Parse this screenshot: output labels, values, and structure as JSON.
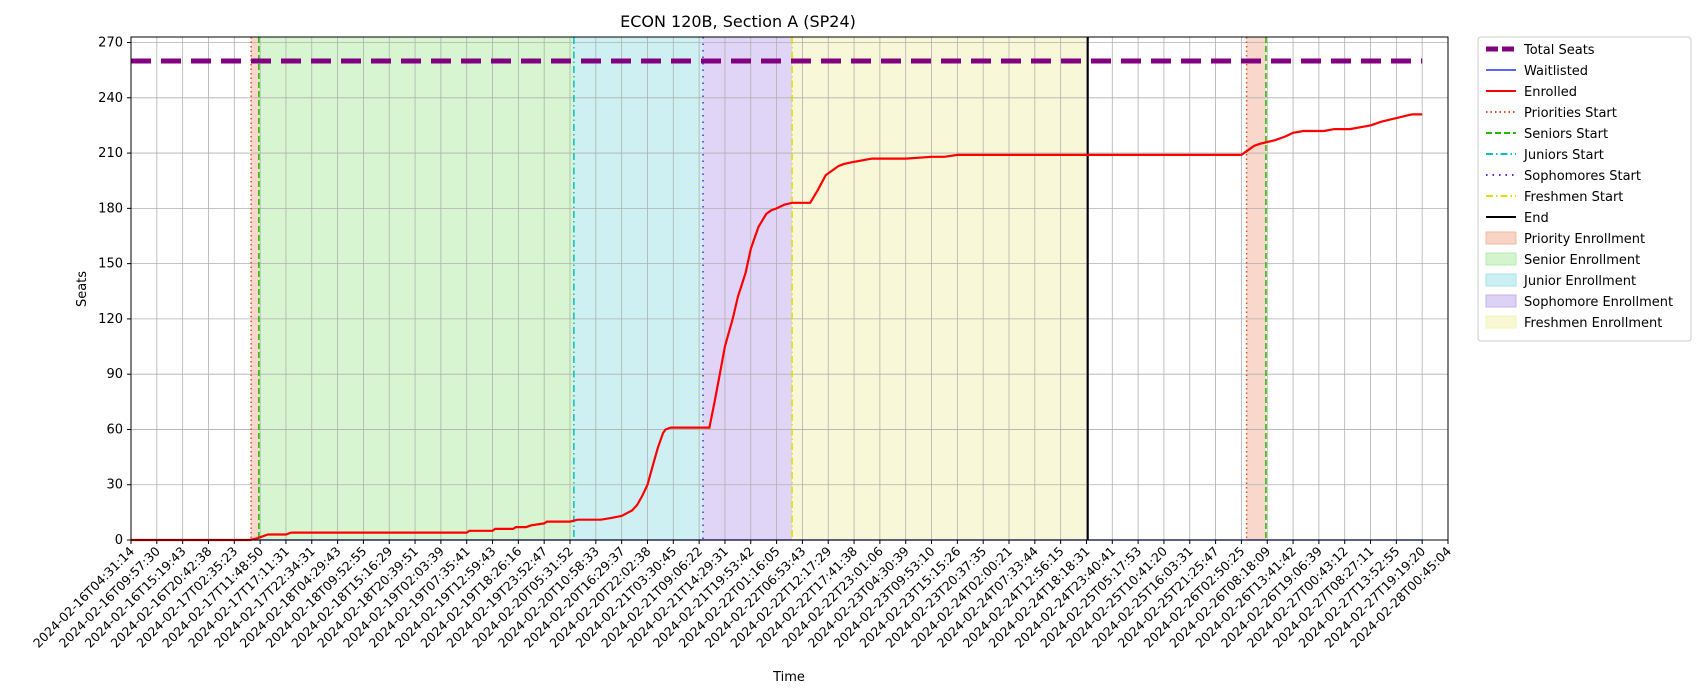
{
  "chart_data": {
    "type": "line",
    "title": "ECON 120B, Section A (SP24)",
    "xlabel": "Time",
    "ylabel": "Seats",
    "ylim": [
      0,
      273
    ],
    "yticks": [
      0,
      30,
      60,
      90,
      120,
      150,
      180,
      210,
      240,
      270
    ],
    "grid": true,
    "legend_position": "outside-right",
    "x_tick_labels": [
      "2024-02-16T04:31:14",
      "2024-02-16T09:57:30",
      "2024-02-16T15:19:43",
      "2024-02-16T20:42:38",
      "2024-02-17T02:35:23",
      "2024-02-17T11:48:50",
      "2024-02-17T17:11:31",
      "2024-02-17T22:34:31",
      "2024-02-18T04:29:43",
      "2024-02-18T09:52:55",
      "2024-02-18T15:16:29",
      "2024-02-18T20:39:51",
      "2024-02-19T02:03:39",
      "2024-02-19T07:35:41",
      "2024-02-19T12:59:43",
      "2024-02-19T18:26:16",
      "2024-02-19T23:52:47",
      "2024-02-20T05:31:52",
      "2024-02-20T10:58:33",
      "2024-02-20T16:29:37",
      "2024-02-20T22:02:38",
      "2024-02-21T03:30:45",
      "2024-02-21T09:06:22",
      "2024-02-21T14:29:31",
      "2024-02-21T19:53:42",
      "2024-02-22T01:16:05",
      "2024-02-22T06:53:43",
      "2024-02-22T12:17:29",
      "2024-02-22T17:41:38",
      "2024-02-22T23:01:06",
      "2024-02-23T04:30:39",
      "2024-02-23T09:53:10",
      "2024-02-23T15:15:26",
      "2024-02-23T20:37:35",
      "2024-02-24T02:00:21",
      "2024-02-24T07:33:44",
      "2024-02-24T12:56:15",
      "2024-02-24T18:18:31",
      "2024-02-24T23:40:41",
      "2024-02-25T05:17:53",
      "2024-02-25T10:41:20",
      "2024-02-25T16:03:31",
      "2024-02-25T21:25:47",
      "2024-02-26T02:50:25",
      "2024-02-26T08:18:09",
      "2024-02-26T13:41:42",
      "2024-02-26T19:06:39",
      "2024-02-27T00:43:12",
      "2024-02-27T08:27:11",
      "2024-02-27T13:52:55",
      "2024-02-27T19:19:20",
      "2024-02-28T00:45:04"
    ],
    "series": [
      {
        "name": "Total Seats",
        "color": "#800080",
        "style": "dashed-thick",
        "x": [
          0,
          50
        ],
        "values": [
          260,
          260
        ]
      },
      {
        "name": "Waitlisted",
        "color": "#0000ff",
        "style": "solid-thin",
        "x": [
          0,
          50
        ],
        "values": [
          0,
          0
        ]
      },
      {
        "name": "Enrolled",
        "color": "#ff0000",
        "style": "solid",
        "x": [
          0,
          4.6,
          4.9,
          5.3,
          6.0,
          6.2,
          13.0,
          13.1,
          14.0,
          14.1,
          14.8,
          14.9,
          15.3,
          15.5,
          16.0,
          16.1,
          17.0,
          17.3,
          17.8,
          18.2,
          18.6,
          19.0,
          19.4,
          19.6,
          19.8,
          20.0,
          20.2,
          20.4,
          20.6,
          20.7,
          20.9,
          21.3,
          21.5,
          22.0,
          22.4,
          22.6,
          22.8,
          23.0,
          23.3,
          23.5,
          23.8,
          24.0,
          24.3,
          24.6,
          24.8,
          25.0,
          25.3,
          25.6,
          26.0,
          26.3,
          26.6,
          26.9,
          27.1,
          27.4,
          27.6,
          27.9,
          28.3,
          28.7,
          29.3,
          30.0,
          31.0,
          31.5,
          32.0,
          33.0,
          34.0,
          35.0,
          36.0,
          37.0,
          38.0,
          39.0,
          40.0,
          41.0,
          42.0,
          43.0,
          43.2,
          43.5,
          43.7,
          44.0,
          44.3,
          44.7,
          45.0,
          45.4,
          45.8,
          46.2,
          46.6,
          47.2,
          48.0,
          48.4,
          48.7,
          49.0,
          49.3,
          49.6,
          50.0
        ],
        "values": [
          0,
          0,
          1,
          3,
          3,
          4,
          4,
          5,
          5,
          6,
          6,
          7,
          7,
          8,
          9,
          10,
          10,
          11,
          11,
          11,
          12,
          13,
          16,
          19,
          24,
          30,
          40,
          50,
          58,
          60,
          61,
          61,
          61,
          61,
          61,
          75,
          90,
          105,
          120,
          132,
          145,
          158,
          170,
          177,
          179,
          180,
          182,
          183,
          183,
          183,
          190,
          198,
          200,
          203,
          204,
          205,
          206,
          207,
          207,
          207,
          208,
          208,
          209,
          209,
          209,
          209,
          209,
          209,
          209,
          209,
          209,
          209,
          209,
          209,
          211,
          214,
          215,
          216,
          217,
          219,
          221,
          222,
          222,
          222,
          223,
          223,
          225,
          227,
          228,
          229,
          230,
          231,
          231
        ]
      }
    ],
    "markers": [
      {
        "name": "Priorities Start",
        "x": 4.65,
        "color": "#e64a19",
        "style": "dotted"
      },
      {
        "name": "Seniors Start",
        "x": 4.95,
        "color": "#22bb00",
        "style": "dashed"
      },
      {
        "name": "Juniors Start",
        "x": 17.15,
        "color": "#00c0c0",
        "style": "dashdot"
      },
      {
        "name": "Sophomores Start",
        "x": 22.15,
        "color": "#5522dd",
        "style": "dashdotdense"
      },
      {
        "name": "Freshmen Start",
        "x": 25.6,
        "color": "#dddd00",
        "style": "dashdot"
      },
      {
        "name": "End",
        "x": 37.05,
        "color": "#000000",
        "style": "solid"
      },
      {
        "name": "Priorities Start",
        "x": 43.2,
        "color": "#e64a19",
        "style": "dotted",
        "legend": false
      },
      {
        "name": "Seniors Start",
        "x": 43.95,
        "color": "#22bb00",
        "style": "dashed",
        "legend": false
      }
    ],
    "spans": [
      {
        "name": "Priority Enrollment",
        "start": 4.65,
        "end": 4.95,
        "color": "#f4b8a0"
      },
      {
        "name": "Senior Enrollment",
        "start": 4.95,
        "end": 17.15,
        "color": "#b6ecaa"
      },
      {
        "name": "Junior Enrollment",
        "start": 17.15,
        "end": 22.15,
        "color": "#a6e4ea"
      },
      {
        "name": "Sophomore Enrollment",
        "start": 22.15,
        "end": 25.6,
        "color": "#c7b3ee"
      },
      {
        "name": "Freshmen Enrollment",
        "start": 25.6,
        "end": 37.05,
        "color": "#f3f3b8"
      },
      {
        "name": "Priority Enrollment",
        "start": 43.2,
        "end": 43.95,
        "color": "#f4b8a0",
        "legend": false
      }
    ]
  }
}
